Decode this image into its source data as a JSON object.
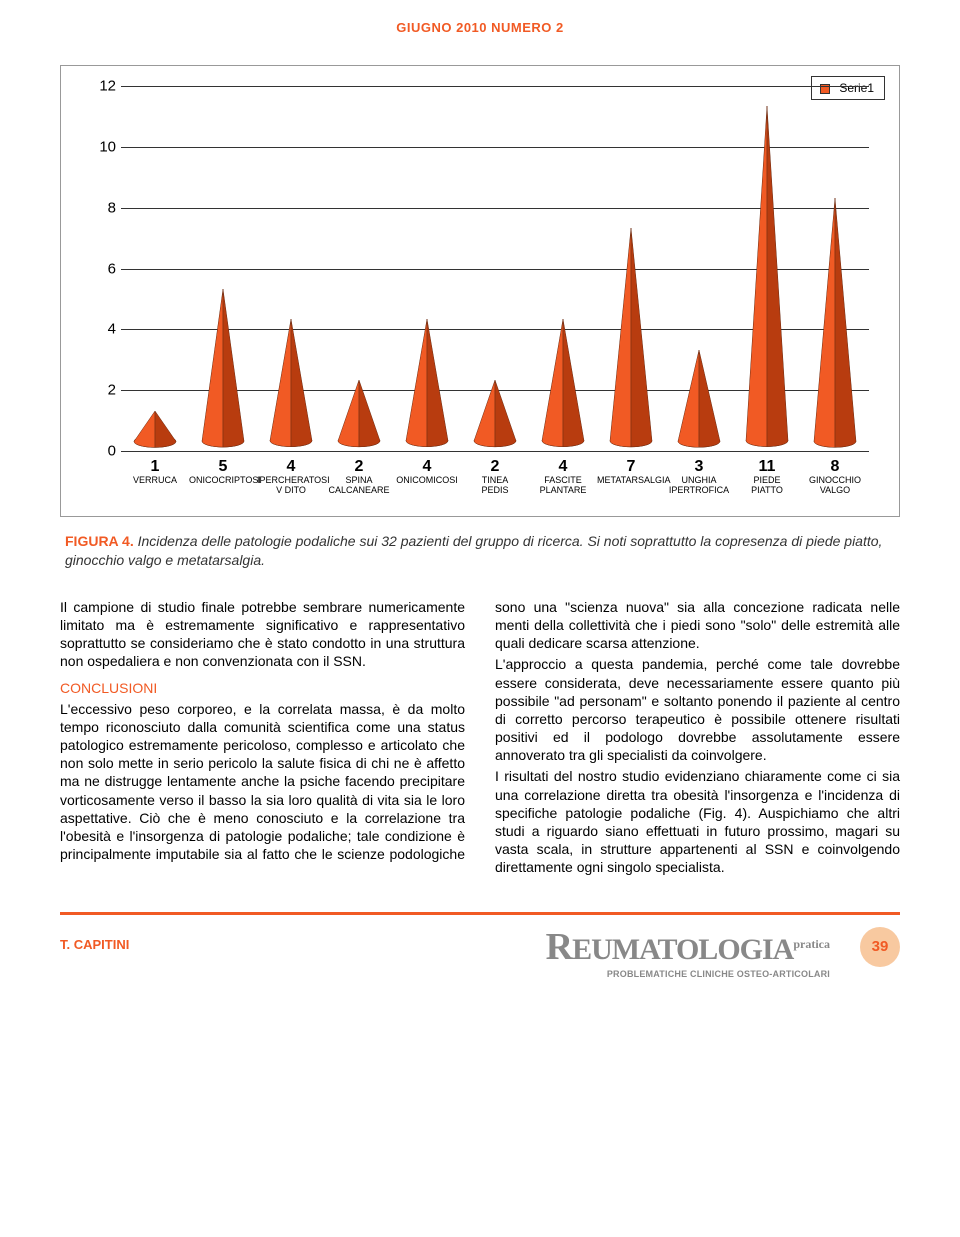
{
  "header": "GIUGNO 2010 NUMERO 2",
  "chart": {
    "type": "cone",
    "ymax": 12,
    "ytick_step": 2,
    "background": "#ffffff",
    "grid_color": "#333333",
    "legend": {
      "label": "Serie1",
      "swatch": "#f15a24"
    },
    "cone_fill": "#f15a24",
    "cone_shadow": "#b83c0f",
    "cone_edge": "#6a2a10",
    "points": [
      {
        "value": 1,
        "label_top": "VERRUCA",
        "label_bottom": ""
      },
      {
        "value": 5,
        "label_top": "ONICOCRIPTOSI",
        "label_bottom": ""
      },
      {
        "value": 4,
        "label_top": "IPERCHERATOSI",
        "label_bottom": "V DITO"
      },
      {
        "value": 2,
        "label_top": "SPINA",
        "label_bottom": "CALCANEARE"
      },
      {
        "value": 4,
        "label_top": "ONICOMICOSI",
        "label_bottom": ""
      },
      {
        "value": 2,
        "label_top": "TINEA",
        "label_bottom": "PEDIS"
      },
      {
        "value": 4,
        "label_top": "FASCITE",
        "label_bottom": "PLANTARE"
      },
      {
        "value": 7,
        "label_top": "METATARSALGIA",
        "label_bottom": ""
      },
      {
        "value": 3,
        "label_top": "UNGHIA",
        "label_bottom": "IPERTROFICA"
      },
      {
        "value": 11,
        "label_top": "PIEDE",
        "label_bottom": "PIATTO"
      },
      {
        "value": 8,
        "label_top": "GINOCCHIO",
        "label_bottom": "VALGO"
      }
    ]
  },
  "caption": {
    "figref": "FIGURA 4.",
    "text": "Incidenza delle patologie podaliche sui 32 pazienti del gruppo di ricerca. Si noti soprattutto la copresenza di piede piatto, ginocchio valgo e metatarsalgia."
  },
  "body": {
    "p1": "Il campione di studio finale potrebbe sembrare numericamente limitato ma è estremamente significativo e rappresentativo soprattutto se consideriamo che è stato condotto in una struttura non ospedaliera e non convenzionata con il SSN.",
    "conclusioni_h": "CONCLUSIONI",
    "p2": "L'eccessivo peso corporeo, e la correlata massa, è da molto tempo riconosciuto dalla comunità scientifica come una status patologico estremamente pericoloso, complesso e articolato che non solo mette in serio pericolo la salute fisica di chi ne è affetto ma ne distrugge lentamente anche la psiche facendo precipitare vorticosamente verso il basso la sia loro qualità di vita sia le loro aspettative. Ciò che è meno conosciuto e la correlazione tra l'obesità e l'insorgenza di patologie podaliche; tale condizione è principalmente imputabile sia al fatto che le scienze podologiche sono una \"scienza nuova\" sia alla concezione radicata nelle menti della collettività che i piedi sono \"solo\" delle estremità alle quali dedicare scarsa attenzione.",
    "p3": "L'approccio a questa pandemia, perché come tale dovrebbe essere considerata, deve necessariamente essere quanto più possibile \"ad personam\" e soltanto ponendo il paziente al centro di corretto percorso terapeutico è possibile ottenere risultati positivi ed il podologo dovrebbe assolutamente essere annoverato tra gli specialisti da coinvolgere.",
    "p4": "I risultati del nostro studio evidenziano chiaramente come ci sia una correlazione diretta tra obesità l'insorgenza e l'incidenza di specifiche patologie podaliche (Fig. 4). Auspichiamo che altri studi a riguardo siano effettuati in futuro prossimo, magari su vasta scala, in strutture appartenenti al SSN e coinvolgendo direttamente ogni singolo specialista."
  },
  "footer": {
    "author": "T. CAPITINI",
    "journal": "EUMATOLOGIA",
    "journal_prefix": "R",
    "journal_suffix": "pratica",
    "subtitle": "PROBLEMATICHE CLINICHE OSTEO-ARTICOLARI",
    "page": "39"
  }
}
